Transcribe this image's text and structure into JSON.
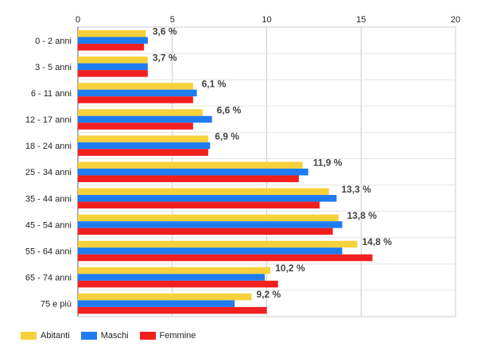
{
  "chart_data": {
    "type": "bar",
    "orientation": "horizontal",
    "categories": [
      "0 - 2 anni",
      "3 - 5 anni",
      "6 - 11 anni",
      "12 - 17 anni",
      "18 - 24 anni",
      "25 - 34 anni",
      "35 - 44 anni",
      "45 - 54 anni",
      "55 - 64 anni",
      "65 - 74 anni",
      "75 e più"
    ],
    "series": [
      {
        "name": "Abitanti",
        "color": "#f7d13b",
        "values": [
          3.6,
          3.7,
          6.1,
          6.6,
          6.9,
          11.9,
          13.3,
          13.8,
          14.8,
          10.2,
          9.2
        ]
      },
      {
        "name": "Maschi",
        "color": "#1f7cf0",
        "values": [
          3.7,
          3.7,
          6.3,
          7.1,
          7.0,
          12.2,
          13.7,
          14.0,
          14.0,
          9.9,
          8.3
        ]
      },
      {
        "name": "Femmine",
        "color": "#f21f1f",
        "values": [
          3.5,
          3.7,
          6.1,
          6.1,
          6.9,
          11.7,
          12.8,
          13.5,
          15.6,
          10.6,
          10.0
        ]
      }
    ],
    "data_labels": [
      "3,6 %",
      "3,7 %",
      "6,1 %",
      "6,6 %",
      "6,9 %",
      "11,9 %",
      "13,3 %",
      "13,8 %",
      "14,8 %",
      "10,2 %",
      "9,2 %"
    ],
    "x_ticks": [
      0,
      5,
      10,
      15,
      20
    ],
    "xlim": [
      0,
      20
    ],
    "axis_position": "top",
    "grid": true,
    "legend_position": "bottom-left",
    "title": "",
    "xlabel": "",
    "ylabel": ""
  }
}
